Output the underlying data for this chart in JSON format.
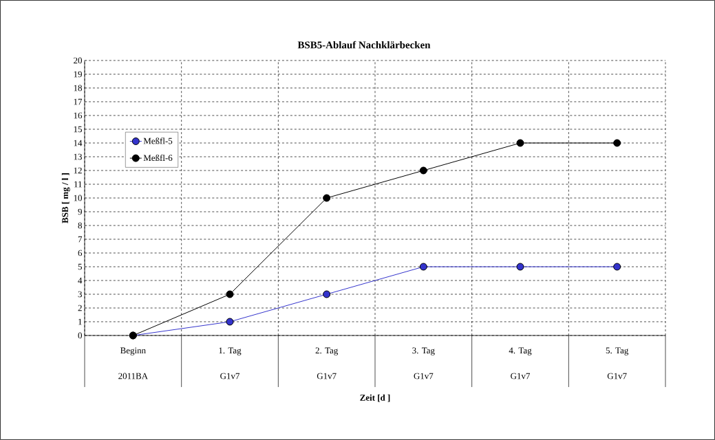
{
  "chart_data": {
    "type": "line",
    "title": "BSB5-Ablauf Nachklärbecken",
    "xlabel": "Zeit [d ]",
    "ylabel": "BSB [ mg / l ]",
    "categories": [
      "Beginn",
      "1. Tag",
      "2. Tag",
      "3. Tag",
      "4. Tag",
      "5. Tag"
    ],
    "annotations": [
      "2011BA",
      "G1v7",
      "G1v7",
      "G1v7",
      "G1v7",
      "G1v7"
    ],
    "series": [
      {
        "name": "Meßfl-5",
        "color": "#3333cc",
        "values": [
          0,
          1,
          3,
          5,
          5,
          5
        ]
      },
      {
        "name": "Meßfl-6",
        "color": "#000000",
        "values": [
          0,
          3,
          10,
          12,
          14,
          14
        ]
      }
    ],
    "ylim": [
      0,
      20
    ],
    "yticks": [
      0,
      1,
      2,
      3,
      4,
      5,
      6,
      7,
      8,
      9,
      10,
      11,
      12,
      13,
      14,
      15,
      16,
      17,
      18,
      19,
      20
    ],
    "grid": true,
    "legend": "top left",
    "marker": "circle",
    "line_style": "solid"
  }
}
